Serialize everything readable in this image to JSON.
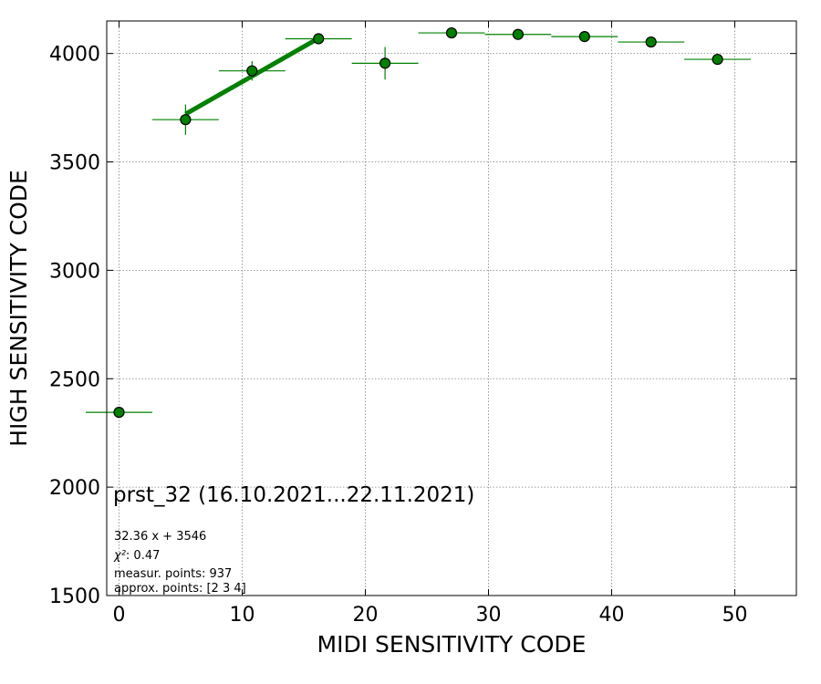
{
  "chart_data": {
    "type": "scatter",
    "xlabel": "MIDI SENSITIVITY CODE",
    "ylabel": "HIGH SENSITIVITY CODE",
    "xlim": [
      -1,
      55
    ],
    "ylim": [
      1500,
      4150
    ],
    "x_ticks": [
      0,
      10,
      20,
      30,
      40,
      50
    ],
    "y_ticks": [
      1500,
      2000,
      2500,
      3000,
      3500,
      4000
    ],
    "grid": true,
    "grid_style": "dotted",
    "points": [
      {
        "x": 0.0,
        "y": 2345,
        "xerr": 2.7,
        "yerr": 0
      },
      {
        "x": 5.4,
        "y": 3695,
        "xerr": 2.7,
        "yerr": 70
      },
      {
        "x": 10.8,
        "y": 3920,
        "xerr": 2.7,
        "yerr": 45
      },
      {
        "x": 16.2,
        "y": 4068,
        "xerr": 2.7,
        "yerr": 8
      },
      {
        "x": 21.6,
        "y": 3955,
        "xerr": 2.7,
        "yerr": 75
      },
      {
        "x": 27.0,
        "y": 4095,
        "xerr": 2.7,
        "yerr": 5
      },
      {
        "x": 32.4,
        "y": 4088,
        "xerr": 2.7,
        "yerr": 5
      },
      {
        "x": 37.8,
        "y": 4078,
        "xerr": 2.7,
        "yerr": 5
      },
      {
        "x": 43.2,
        "y": 4053,
        "xerr": 2.7,
        "yerr": 5
      },
      {
        "x": 48.6,
        "y": 3973,
        "xerr": 2.7,
        "yerr": 8
      }
    ],
    "fit": {
      "slope": 32.36,
      "intercept": 3546,
      "x_range": [
        5.4,
        16.2
      ]
    },
    "colors": {
      "marker": "#008000",
      "fit_line": "#008000",
      "marker_edge": "#000000",
      "grid": "#808080"
    },
    "annotations": {
      "title": "prst_32 (16.10.2021...22.11.2021)",
      "fit_equation": "32.36 x + 3546",
      "chi2_label": "χ²",
      "chi2_value": ": 0.47",
      "measur_points": "measur. points: 937",
      "approx_points": "approx. points: [2 3 4]"
    }
  }
}
